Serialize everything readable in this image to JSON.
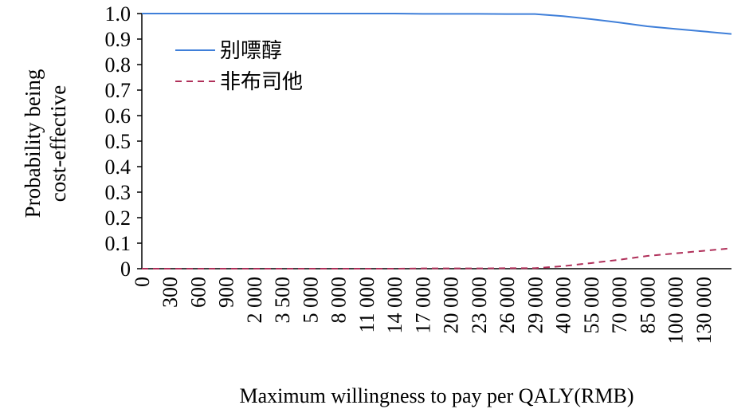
{
  "chart_data": {
    "type": "line",
    "y_label": [
      "Probability being",
      "cost-effective"
    ],
    "x_label": "Maximum willingness to pay per QALY(RMB)",
    "categories": [
      "0",
      "300",
      "600",
      "900",
      "2 000",
      "3 500",
      "5 000",
      "8 000",
      "11 000",
      "14 000",
      "17 000",
      "20 000",
      "23 000",
      "26 000",
      "29 000",
      "40 000",
      "55 000",
      "70 000",
      "85 000",
      "100 000",
      "130 000",
      null
    ],
    "series": [
      {
        "name": "别嘌醇",
        "color": "#3f7fd9",
        "dash": "solid",
        "values": [
          1,
          1,
          1,
          1,
          1,
          1,
          1,
          1,
          1,
          1,
          0.999,
          0.999,
          0.999,
          0.998,
          0.998,
          0.99,
          0.978,
          0.965,
          0.95,
          0.94,
          0.93,
          0.92
        ]
      },
      {
        "name": "非布司他",
        "color": "#b0305a",
        "dash": "dashed",
        "values": [
          0,
          0,
          0,
          0,
          0,
          0,
          0,
          0,
          0,
          0,
          0.001,
          0.001,
          0.001,
          0.002,
          0.002,
          0.01,
          0.022,
          0.035,
          0.05,
          0.06,
          0.07,
          0.08
        ]
      }
    ],
    "ylim": [
      0,
      1
    ],
    "yticks": [
      0,
      0.1,
      0.2,
      0.3,
      0.4,
      0.5,
      0.6,
      0.7,
      0.8,
      0.9,
      {
        "value": 1,
        "label": "1.0"
      }
    ],
    "legend": "upper left",
    "grid": false
  }
}
